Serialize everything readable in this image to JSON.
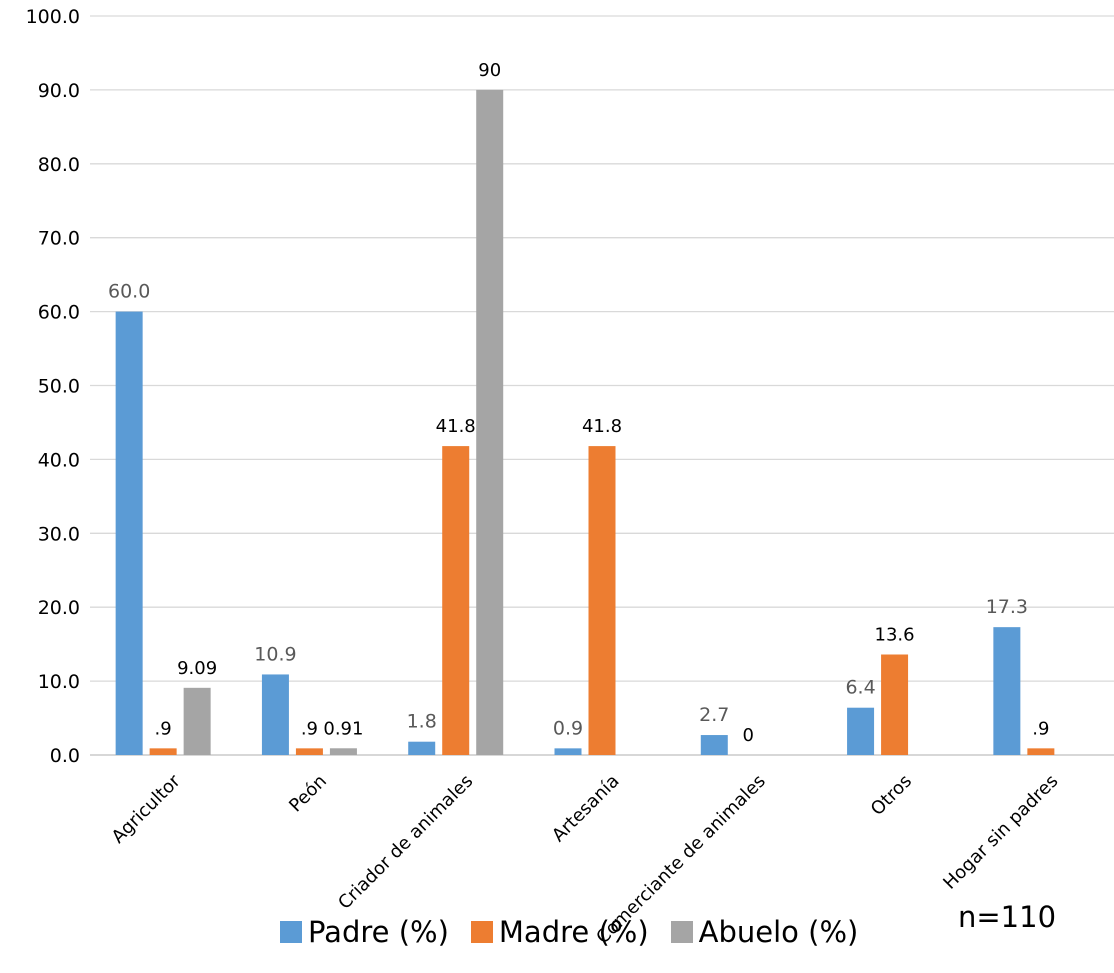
{
  "chart_data": {
    "type": "bar",
    "categories": [
      "Agricultor",
      "Peón",
      "Criador de animales",
      "Artesanía",
      "Comerciante de animales",
      "Otros",
      "Hogar sin padres"
    ],
    "series": [
      {
        "name": "Padre (%)",
        "color": "#5B9BD5",
        "values": [
          60.0,
          10.9,
          1.8,
          0.9,
          2.7,
          6.4,
          17.3
        ],
        "labels": [
          "60.0",
          "10.9",
          "1.8",
          "0.9",
          "2.7",
          "6.4",
          "17.3"
        ]
      },
      {
        "name": "Madre (%)",
        "color": "#ED7D31",
        "values": [
          0.9,
          0.9,
          41.8,
          41.8,
          0,
          13.6,
          0.9
        ],
        "labels": [
          ".9",
          ".9",
          "41.8",
          "41.8",
          "0",
          "13.6",
          ".9"
        ]
      },
      {
        "name": "Abuelo (%)",
        "color": "#A5A5A5",
        "values": [
          9.09,
          0.91,
          90,
          null,
          null,
          null,
          null
        ],
        "labels": [
          "9.09",
          "0.91",
          "90",
          null,
          null,
          null,
          null
        ]
      }
    ],
    "ylim": [
      0,
      100
    ],
    "yticks": [
      "0.0",
      "10.0",
      "20.0",
      "30.0",
      "40.0",
      "50.0",
      "60.0",
      "70.0",
      "80.0",
      "90.0",
      "100.0"
    ],
    "grid": true,
    "legend_position": "bottom",
    "annotation": "n=110"
  }
}
